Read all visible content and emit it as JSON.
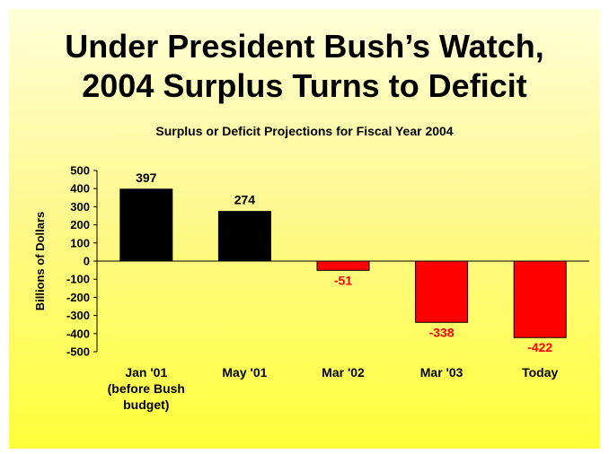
{
  "slide": {
    "title_line1": "Under President Bush’s Watch,",
    "title_line2": "2004 Surplus Turns to Deficit"
  },
  "chart_data": {
    "type": "bar",
    "title": "Surplus or Deficit Projections for Fiscal Year 2004",
    "ylabel": "Billions of Dollars",
    "xlabel": "",
    "ylim": [
      -500,
      500
    ],
    "yticks": [
      500,
      400,
      300,
      200,
      100,
      0,
      -100,
      -200,
      -300,
      -400,
      -500
    ],
    "grid": false,
    "categories": [
      [
        "Jan '01",
        "(before Bush",
        "budget)"
      ],
      [
        "May '01"
      ],
      [
        "Mar '02"
      ],
      [
        "Mar '03"
      ],
      [
        "Today"
      ]
    ],
    "values": [
      397,
      274,
      -51,
      -338,
      -422
    ],
    "data_labels": [
      "397",
      "274",
      "-51",
      "-338",
      "-422"
    ],
    "colors": {
      "surplus": "#000000",
      "deficit": "#ff0000",
      "deficit_label": "#ff0000",
      "surplus_label": "#000000"
    }
  }
}
